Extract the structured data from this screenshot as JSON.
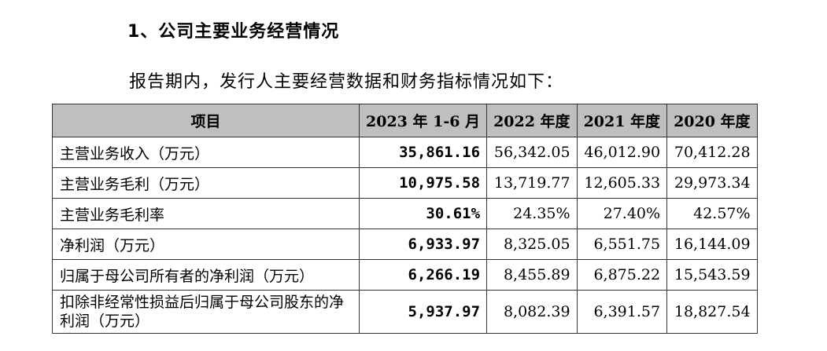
{
  "heading": "1、公司主要业务经营情况",
  "intro": "报告期内，发行人主要经营数据和财务指标情况如下：",
  "table": {
    "headers": [
      "项目",
      "2023 年 1-6 月",
      "2022 年度",
      "2021 年度",
      "2020 年度"
    ],
    "rows": [
      {
        "label": "主营业务收入（万元）",
        "values": [
          "35,861.16",
          "56,342.05",
          "46,012.90",
          "70,412.28"
        ]
      },
      {
        "label": "主营业务毛利（万元）",
        "values": [
          "10,975.58",
          "13,719.77",
          "12,605.33",
          "29,973.34"
        ]
      },
      {
        "label": "主营业务毛利率",
        "values": [
          "30.61%",
          "24.35%",
          "27.40%",
          "42.57%"
        ]
      },
      {
        "label": "净利润（万元）",
        "values": [
          "6,933.97",
          "8,325.05",
          "6,551.75",
          "16,144.09"
        ]
      },
      {
        "label": "归属于母公司所有者的净利润（万元）",
        "values": [
          "6,266.19",
          "8,455.89",
          "6,875.22",
          "15,543.59"
        ]
      },
      {
        "label": "扣除非经常性损益后归属于母公司股东的净利润（万元）",
        "values": [
          "5,937.97",
          "8,082.39",
          "6,391.57",
          "18,827.54"
        ]
      }
    ]
  }
}
